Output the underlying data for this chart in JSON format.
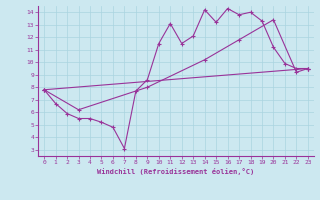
{
  "background_color": "#cce8f0",
  "line_color": "#993399",
  "grid_color": "#aad4e0",
  "xlabel": "Windchill (Refroidissement éolien,°C)",
  "xlim": [
    -0.5,
    23.5
  ],
  "ylim": [
    2.5,
    14.5
  ],
  "xticks": [
    0,
    1,
    2,
    3,
    4,
    5,
    6,
    7,
    8,
    9,
    10,
    11,
    12,
    13,
    14,
    15,
    16,
    17,
    18,
    19,
    20,
    21,
    22,
    23
  ],
  "yticks": [
    3,
    4,
    5,
    6,
    7,
    8,
    9,
    10,
    11,
    12,
    13,
    14
  ],
  "line1_x": [
    0,
    1,
    2,
    3,
    4,
    5,
    6,
    7,
    8,
    9,
    10,
    11,
    12,
    13,
    14,
    15,
    16,
    17,
    18,
    19,
    20,
    21,
    22,
    23
  ],
  "line1_y": [
    7.8,
    6.7,
    5.9,
    5.5,
    5.5,
    5.2,
    4.8,
    3.1,
    7.7,
    8.6,
    11.5,
    13.1,
    11.5,
    12.1,
    14.2,
    13.2,
    14.3,
    13.8,
    14.0,
    13.3,
    11.2,
    9.9,
    9.5,
    9.5
  ],
  "line2_x": [
    0,
    3,
    9,
    14,
    17,
    20,
    22,
    23
  ],
  "line2_y": [
    7.8,
    6.2,
    8.0,
    10.2,
    11.8,
    13.4,
    9.2,
    9.5
  ],
  "line3_x": [
    0,
    23
  ],
  "line3_y": [
    7.8,
    9.5
  ]
}
